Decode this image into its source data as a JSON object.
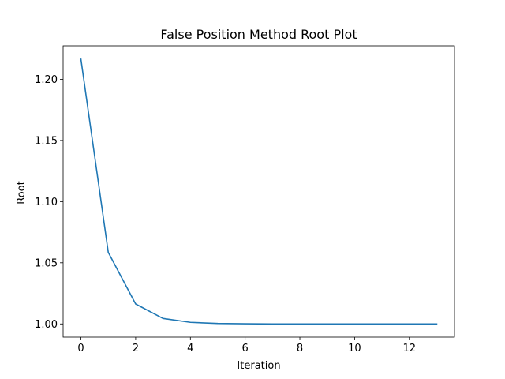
{
  "chart_data": {
    "type": "line",
    "title": "False Position Method Root Plot",
    "xlabel": "Iteration",
    "ylabel": "Root",
    "xlim": [
      -0.65,
      13.65
    ],
    "ylim": [
      0.9892,
      1.2274
    ],
    "xticks": [
      0,
      2,
      4,
      6,
      8,
      10,
      12
    ],
    "yticks": [
      1.0,
      1.05,
      1.1,
      1.15,
      1.2
    ],
    "xtick_labels": [
      "0",
      "2",
      "4",
      "6",
      "8",
      "10",
      "12"
    ],
    "ytick_labels": [
      "1.00",
      "1.05",
      "1.10",
      "1.15",
      "1.20"
    ],
    "grid": false,
    "series": [
      {
        "color": "#1f77b4",
        "x": [
          0,
          1,
          2,
          3,
          4,
          5,
          6,
          7,
          8,
          9,
          10,
          11,
          12,
          13
        ],
        "values": [
          1.2165,
          1.0585,
          1.0163,
          1.0045,
          1.0013,
          1.0004,
          1.0001,
          1.0,
          1.0,
          1.0,
          1.0,
          1.0,
          1.0,
          1.0
        ]
      }
    ]
  }
}
